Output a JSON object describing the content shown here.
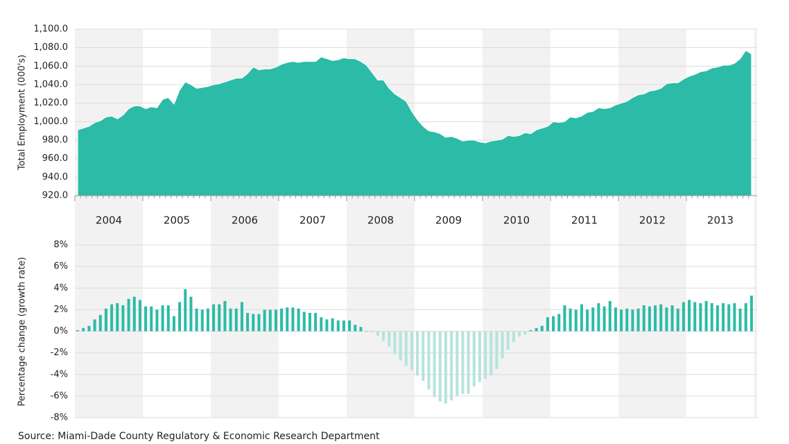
{
  "chart_data": [
    {
      "type": "area",
      "ylabel": "Total Employment (000's)",
      "color": "#2bbba7",
      "categories": [
        "2004",
        "2005",
        "2006",
        "2007",
        "2008",
        "2009",
        "2010",
        "2011",
        "2012",
        "2013"
      ],
      "values": [
        [
          991,
          993,
          995,
          999,
          1001,
          1005,
          1006,
          1003,
          1007,
          1014,
          1017,
          1017
        ],
        [
          1014,
          1016,
          1015,
          1024,
          1026,
          1019,
          1034,
          1043,
          1040,
          1036,
          1037,
          1038
        ],
        [
          1040,
          1041,
          1043,
          1045,
          1047,
          1047,
          1052,
          1059,
          1056,
          1057,
          1057,
          1059
        ],
        [
          1062,
          1064,
          1065,
          1064,
          1065,
          1065,
          1065,
          1070,
          1068,
          1066,
          1067,
          1069
        ],
        [
          1068,
          1068,
          1065,
          1061,
          1053,
          1045,
          1045,
          1036,
          1030,
          1026,
          1022,
          1011
        ],
        [
          1002,
          995,
          990,
          989,
          987,
          983,
          984,
          982,
          979,
          980,
          980,
          978
        ],
        [
          977,
          979,
          980,
          981,
          985,
          984,
          985,
          988,
          987,
          991,
          993,
          995
        ],
        [
          1000,
          999,
          1000,
          1005,
          1004,
          1006,
          1010,
          1011,
          1015,
          1014,
          1015,
          1018
        ],
        [
          1020,
          1022,
          1026,
          1029,
          1030,
          1033,
          1034,
          1036,
          1041,
          1042,
          1042,
          1046
        ],
        [
          1049,
          1051,
          1054,
          1055,
          1058,
          1059,
          1061,
          1061,
          1063,
          1068,
          1077,
          1073
        ]
      ],
      "ylim": [
        920,
        1100
      ],
      "yticks": [
        {
          "value": 920,
          "label": "920.0"
        },
        {
          "value": 940,
          "label": "940.0"
        },
        {
          "value": 960,
          "label": "960.0"
        },
        {
          "value": 980,
          "label": "980.0"
        },
        {
          "value": 1000,
          "label": "1,000.0"
        },
        {
          "value": 1020,
          "label": "1,020.0"
        },
        {
          "value": 1040,
          "label": "1,040.0"
        },
        {
          "value": 1060,
          "label": "1,060.0"
        },
        {
          "value": 1080,
          "label": "1,080.0"
        },
        {
          "value": 1100,
          "label": "1,100.0"
        }
      ],
      "grid": true
    },
    {
      "type": "bar",
      "ylabel": "Percentage change (growth rate)",
      "color": "#2bbba7",
      "negative_color": "#b6e3dc",
      "values": [
        [
          0.1,
          0.3,
          0.5,
          1.1,
          1.5,
          2.1,
          2.5,
          2.6,
          2.4,
          3.0,
          3.2,
          2.9
        ],
        [
          2.3,
          2.3,
          2.0,
          2.4,
          2.4,
          1.4,
          2.7,
          3.9,
          3.2,
          2.1,
          2.0,
          2.1
        ],
        [
          2.5,
          2.5,
          2.8,
          2.1,
          2.1,
          2.7,
          1.7,
          1.6,
          1.6,
          2.0,
          2.0,
          2.0
        ],
        [
          2.1,
          2.2,
          2.2,
          2.1,
          1.8,
          1.7,
          1.7,
          1.3,
          1.1,
          1.2,
          1.0,
          1.0
        ],
        [
          1.0,
          0.6,
          0.4,
          0.0,
          -0.1,
          -0.4,
          -0.9,
          -1.4,
          -2.1,
          -2.7,
          -3.2,
          -3.6
        ],
        [
          -4.1,
          -4.6,
          -5.4,
          -6.1,
          -6.5,
          -6.7,
          -6.4,
          -6.0,
          -5.8,
          -5.8,
          -5.1,
          -4.7
        ],
        [
          -4.4,
          -4.1,
          -3.5,
          -2.5,
          -1.7,
          -1.0,
          -0.5,
          -0.3,
          0.1,
          0.3,
          0.5,
          1.3
        ],
        [
          1.4,
          1.6,
          2.4,
          2.1,
          2.0,
          2.5,
          2.0,
          2.2,
          2.6,
          2.3,
          2.8,
          2.2
        ],
        [
          2.0,
          2.1,
          2.0,
          2.1,
          2.4,
          2.3,
          2.4,
          2.5,
          2.2,
          2.4,
          2.1,
          2.7
        ],
        [
          2.9,
          2.7,
          2.6,
          2.8,
          2.6,
          2.4,
          2.6,
          2.5,
          2.6,
          2.1,
          2.6,
          3.3
        ]
      ],
      "ylim": [
        -8,
        8
      ],
      "yticks": [
        {
          "value": -8,
          "label": "-8%"
        },
        {
          "value": -6,
          "label": "-6%"
        },
        {
          "value": -4,
          "label": "-4%"
        },
        {
          "value": -2,
          "label": "-2%"
        },
        {
          "value": 0,
          "label": "0%"
        },
        {
          "value": 2,
          "label": "2%"
        },
        {
          "value": 4,
          "label": "4%"
        },
        {
          "value": 6,
          "label": "6%"
        },
        {
          "value": 8,
          "label": "8%"
        }
      ],
      "grid": true
    }
  ],
  "source": "Source: Miami-Dade County Regulatory & Economic Research Department"
}
